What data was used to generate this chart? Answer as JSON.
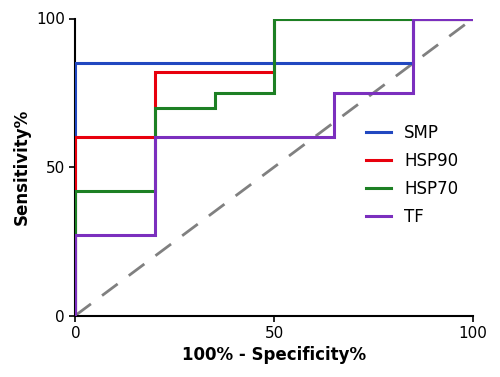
{
  "title": "",
  "xlabel": "100% - Specificity%",
  "ylabel": "Sensitivity%",
  "xlim": [
    0,
    100
  ],
  "ylim": [
    0,
    100
  ],
  "xticks": [
    0,
    50,
    100
  ],
  "yticks": [
    0,
    50,
    100
  ],
  "curves": {
    "SMP": {
      "color": "#2148C0",
      "x": [
        0,
        0,
        20,
        20,
        85,
        85,
        100
      ],
      "y": [
        0,
        85,
        85,
        85,
        85,
        100,
        100
      ]
    },
    "HSP90": {
      "color": "#E8000D",
      "x": [
        0,
        0,
        20,
        20,
        50,
        50,
        65,
        65,
        100
      ],
      "y": [
        0,
        60,
        60,
        82,
        82,
        100,
        100,
        100,
        100
      ]
    },
    "HSP70": {
      "color": "#1D8024",
      "x": [
        0,
        0,
        20,
        20,
        35,
        35,
        50,
        50,
        65,
        65,
        100
      ],
      "y": [
        0,
        42,
        42,
        70,
        70,
        75,
        75,
        100,
        100,
        100,
        100
      ]
    },
    "TF": {
      "color": "#7B2FBE",
      "x": [
        0,
        0,
        5,
        5,
        20,
        20,
        65,
        65,
        85,
        85,
        100
      ],
      "y": [
        0,
        27,
        27,
        27,
        27,
        60,
        60,
        75,
        75,
        100,
        100
      ]
    }
  },
  "legend_order": [
    "SMP",
    "HSP90",
    "HSP70",
    "TF"
  ],
  "lw": 2.2,
  "diagonal_color": "#808080",
  "diagonal_lw": 2.0,
  "fig_bg": "#ffffff",
  "axes_bg": "#ffffff",
  "tick_fontsize": 11,
  "label_fontsize": 12,
  "legend_fontsize": 12
}
